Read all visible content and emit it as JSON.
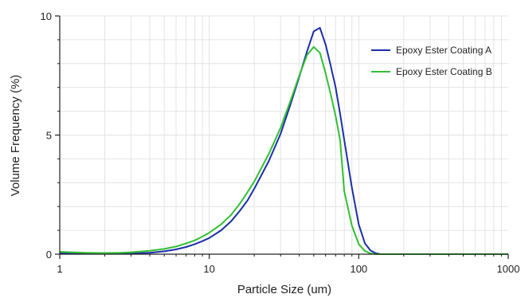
{
  "chart_data": {
    "type": "line",
    "title": "",
    "xlabel": "Particle Size (um)",
    "ylabel": "Volume Frequency (%)",
    "x_scale": "log",
    "xlim": [
      1,
      1000
    ],
    "ylim": [
      0,
      10
    ],
    "x_ticks": [
      1,
      10,
      100,
      1000
    ],
    "x_tick_labels": [
      "1",
      "10",
      "100",
      "1000"
    ],
    "y_ticks": [
      0,
      5,
      10
    ],
    "y_tick_labels": [
      "0",
      "5",
      "10"
    ],
    "grid": true,
    "legend_position": "top-right",
    "series": [
      {
        "name": "Epoxy Ester Coating A",
        "color": "#1a2fa8",
        "x": [
          1,
          1.2,
          1.5,
          2,
          2.5,
          3,
          4,
          5,
          6,
          7,
          8,
          9,
          10,
          12,
          14,
          16,
          18,
          20,
          25,
          30,
          35,
          40,
          45,
          50,
          55,
          60,
          65,
          70,
          75,
          80,
          90,
          100,
          110,
          120,
          130,
          140,
          150,
          160,
          200,
          1000
        ],
        "y": [
          0.05,
          0.04,
          0.03,
          0.02,
          0.02,
          0.03,
          0.06,
          0.12,
          0.2,
          0.3,
          0.42,
          0.55,
          0.68,
          1.0,
          1.38,
          1.82,
          2.25,
          2.75,
          3.9,
          5.05,
          6.3,
          7.45,
          8.5,
          9.35,
          9.5,
          8.8,
          7.9,
          7.0,
          5.9,
          4.8,
          2.8,
          1.25,
          0.45,
          0.15,
          0.04,
          0.0,
          0.0,
          0.0,
          0.0,
          0.0
        ]
      },
      {
        "name": "Epoxy Ester Coating B",
        "color": "#33bf33",
        "x": [
          1,
          1.2,
          1.5,
          2,
          2.5,
          3,
          4,
          5,
          6,
          7,
          8,
          9,
          10,
          12,
          14,
          16,
          18,
          20,
          25,
          30,
          35,
          40,
          45,
          50,
          55,
          60,
          65,
          70,
          75,
          80,
          90,
          100,
          110,
          120,
          130,
          140,
          150,
          160,
          200,
          1000
        ],
        "y": [
          0.1,
          0.08,
          0.06,
          0.05,
          0.06,
          0.08,
          0.14,
          0.22,
          0.32,
          0.45,
          0.58,
          0.74,
          0.9,
          1.25,
          1.65,
          2.12,
          2.6,
          3.05,
          4.2,
          5.3,
          6.45,
          7.5,
          8.35,
          8.7,
          8.45,
          7.6,
          6.7,
          5.8,
          4.8,
          2.65,
          1.2,
          0.42,
          0.13,
          0.03,
          0.0,
          0.0,
          0.0,
          0.0,
          0.0,
          0.0
        ]
      }
    ]
  },
  "colors": {
    "axis": "#222222",
    "grid": "#e4e4e4"
  }
}
